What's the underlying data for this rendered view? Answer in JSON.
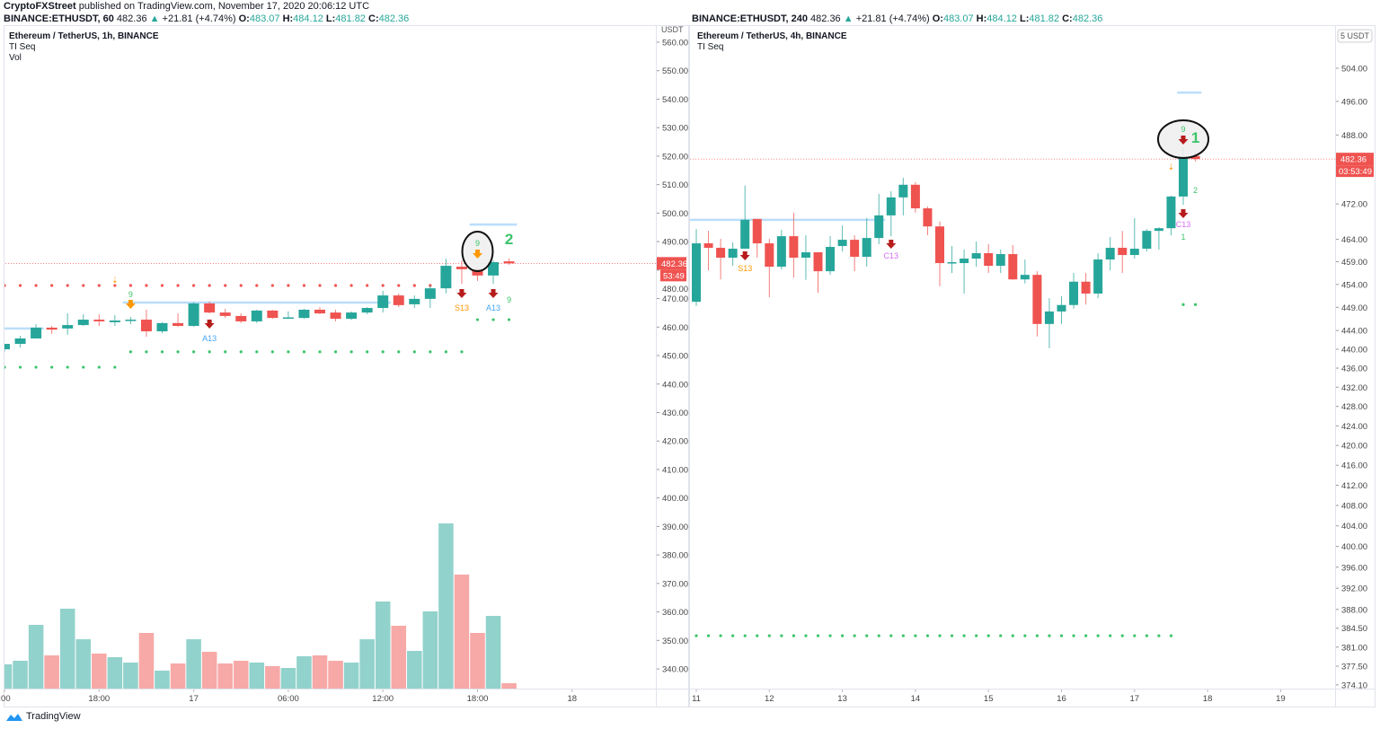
{
  "header": {
    "publisher": "CryptoFXStreet",
    "published_text": "published on TradingView.com, November 17, 2020 20:06:12 UTC"
  },
  "colors": {
    "up": "#26a69a",
    "down": "#ef5350",
    "up_volume": "#92d2cc",
    "down_volume": "#f7a9a7",
    "td_green": "#3cc46a",
    "td_red_dots": "#ef5350",
    "td_orange": "#ff9800",
    "td_blue": "#42a5f5",
    "td_magenta": "#d66cf5",
    "arrow_dark_red": "#b71c1c",
    "support_line": "#bbdefb",
    "price_badge": "#ef5350"
  },
  "panes": [
    {
      "symbol": "BINANCE:ETHUSDT, 60",
      "last": "482.36",
      "up_icon": "triangle-up",
      "change": "+21.81 (+4.74%)",
      "o_label": "O:",
      "o": "483.07",
      "h_label": "H:",
      "h": "484.12",
      "l_label": "L:",
      "l": "481.82",
      "c_label": "C:",
      "c": "482.36",
      "title": "Ethereum / TetherUS, 1h, BINANCE",
      "indicators": [
        "TI Seq",
        "Vol"
      ],
      "currency": "USDT",
      "price_badge": "482.36",
      "countdown": "53:49"
    },
    {
      "symbol": "BINANCE:ETHUSDT, 240",
      "last": "482.36",
      "up_icon": "triangle-up",
      "change": "+21.81 (+4.74%)",
      "o_label": "O:",
      "o": "483.07",
      "h_label": "H:",
      "h": "484.12",
      "l_label": "L:",
      "l": "481.82",
      "c_label": "C:",
      "c": "482.36",
      "title": "Ethereum / TetherUS, 4h, BINANCE",
      "indicators": [
        "TI Seq"
      ],
      "currency": "5 USDT",
      "price_badge": "482.36",
      "countdown": "03:53:49"
    }
  ],
  "footer": {
    "brand": "TradingView"
  },
  "chart_data": [
    {
      "type": "candlestick",
      "interval": "1h",
      "scale": "linear",
      "ylim": [
        340,
        560
      ],
      "y_ticks": [
        "560.00",
        "550.00",
        "540.00",
        "530.00",
        "520.00",
        "510.00",
        "500.00",
        "490.00",
        "480.00",
        "470.00",
        "460.00",
        "450.00",
        "440.00",
        "430.00",
        "420.00",
        "410.00",
        "400.00",
        "390.00",
        "380.00",
        "370.00",
        "360.00",
        "350.00",
        "340.00"
      ],
      "x_ticks": [
        ":00",
        "18:00",
        "17",
        "06:00",
        "12:00",
        "18:00",
        "18"
      ],
      "x_tick_index": [
        0,
        6,
        12,
        18,
        24,
        30,
        36
      ],
      "last_price": 482.36,
      "candles": [
        [
          452.2,
          454.1,
          451.3,
          454.1
        ],
        [
          454.1,
          456.9,
          452.8,
          456.0
        ],
        [
          456.0,
          461.0,
          456.0,
          459.8
        ],
        [
          459.8,
          460.4,
          457.6,
          459.1
        ],
        [
          459.5,
          464.8,
          457.3,
          460.7
        ],
        [
          460.7,
          464.5,
          460.4,
          462.6
        ],
        [
          462.6,
          464.5,
          460.4,
          462.0
        ],
        [
          461.7,
          464.2,
          460.4,
          462.3
        ],
        [
          462.3,
          463.6,
          461.0,
          462.6
        ],
        [
          462.6,
          466.1,
          456.6,
          458.5
        ],
        [
          458.5,
          461.7,
          457.9,
          461.4
        ],
        [
          461.4,
          464.8,
          460.1,
          460.4
        ],
        [
          460.4,
          468.7,
          460.1,
          468.3
        ],
        [
          468.3,
          469.0,
          464.8,
          465.1
        ],
        [
          465.1,
          466.4,
          463.2,
          463.9
        ],
        [
          463.9,
          464.8,
          461.4,
          462.0
        ],
        [
          462.0,
          466.1,
          461.4,
          465.8
        ],
        [
          465.8,
          466.0,
          462.9,
          463.2
        ],
        [
          463.2,
          465.5,
          462.9,
          463.4
        ],
        [
          463.2,
          466.4,
          462.9,
          466.1
        ],
        [
          466.1,
          467.0,
          464.5,
          464.8
        ],
        [
          465.1,
          466.1,
          462.0,
          462.9
        ],
        [
          462.9,
          465.5,
          462.5,
          465.1
        ],
        [
          465.1,
          467.0,
          464.5,
          466.7
        ],
        [
          466.7,
          472.7,
          465.1,
          471.1
        ],
        [
          471.1,
          471.8,
          467.0,
          467.7
        ],
        [
          468.0,
          471.1,
          466.7,
          469.9
        ],
        [
          469.9,
          474.6,
          466.7,
          473.6
        ],
        [
          473.6,
          484.0,
          471.8,
          481.5
        ],
        [
          481.2,
          483.4,
          475.2,
          480.3
        ],
        [
          480.3,
          481.2,
          476.2,
          478.1
        ],
        [
          478.1,
          483.4,
          475.2,
          482.8
        ],
        [
          483.07,
          484.12,
          481.82,
          482.36
        ]
      ],
      "volume": [
        27,
        31,
        71,
        37,
        89,
        55,
        39,
        35,
        29,
        62,
        20,
        28,
        55,
        41,
        28,
        31,
        29,
        25,
        23,
        36,
        37,
        31,
        29,
        55,
        97,
        70,
        42,
        86,
        184,
        127,
        62,
        81,
        6
      ],
      "dot_rows": [
        {
          "color": "red",
          "price": 474.6,
          "from": 0,
          "to": 27
        },
        {
          "color": "green",
          "price": 445.9,
          "from": 0,
          "to": 7
        },
        {
          "color": "green",
          "price": 451.3,
          "from": 8,
          "to": 29
        },
        {
          "color": "green",
          "price": 462.6,
          "from": 30,
          "to": 32
        }
      ],
      "levels": [
        {
          "price": 459.5,
          "from": 0,
          "to": 2
        },
        {
          "price": 468.6,
          "from": 8,
          "to": 24
        },
        {
          "price": 496.0,
          "from": 30,
          "to": 32
        }
      ],
      "markers": [
        {
          "index": 7,
          "text": "⇣",
          "color": "orange"
        },
        {
          "index": 8,
          "text": "9",
          "color": "green"
        },
        {
          "index": 8,
          "icon": "arrow-down",
          "color": "orange"
        },
        {
          "index": 13,
          "icon": "arrow-down",
          "color": "darkred"
        },
        {
          "index": 13,
          "text": "A13",
          "color": "blue"
        },
        {
          "index": 29,
          "icon": "arrow-down",
          "color": "darkred"
        },
        {
          "index": 29,
          "text": "S13",
          "color": "orange"
        },
        {
          "index": 31,
          "icon": "arrow-down",
          "color": "darkred"
        },
        {
          "index": 31,
          "text": "A13",
          "color": "blue"
        },
        {
          "index": 32,
          "text": "9",
          "color": "green"
        },
        {
          "index": 30,
          "text": "9",
          "color": "green"
        },
        {
          "index": 30,
          "icon": "arrow-down",
          "color": "orange"
        },
        {
          "index": 32,
          "text": "2",
          "color": "green",
          "large": true
        }
      ],
      "highlight_circle_index": 30
    },
    {
      "type": "candlestick",
      "interval": "4h",
      "scale": "log",
      "ylim": [
        374.1,
        504
      ],
      "y_ticks": [
        "504.00",
        "496.00",
        "488.00",
        "472.00",
        "464.00",
        "459.00",
        "454.00",
        "449.00",
        "444.00",
        "440.00",
        "436.00",
        "432.00",
        "428.00",
        "424.00",
        "420.00",
        "416.00",
        "412.00",
        "408.00",
        "404.00",
        "400.00",
        "396.00",
        "392.00",
        "388.00",
        "384.50",
        "381.00",
        "377.50",
        "374.10"
      ],
      "x_ticks": [
        "11",
        "12",
        "13",
        "14",
        "15",
        "16",
        "17",
        "18",
        "19"
      ],
      "x_tick_index": [
        0,
        6,
        12,
        18,
        24,
        30,
        36,
        42,
        48
      ],
      "last_price": 482.36,
      "candles": [
        [
          450.2,
          466.3,
          449.3,
          463.1
        ],
        [
          463.1,
          465.9,
          457.1,
          462.1
        ],
        [
          462.1,
          464.1,
          455.1,
          459.9
        ],
        [
          459.9,
          463.3,
          458.1,
          461.9
        ],
        [
          461.9,
          476.2,
          461.9,
          468.4
        ],
        [
          468.6,
          468.6,
          459.9,
          463.1
        ],
        [
          463.1,
          464.1,
          451.2,
          457.9
        ],
        [
          457.9,
          466.1,
          457.3,
          464.7
        ],
        [
          464.7,
          470.0,
          455.5,
          459.9
        ],
        [
          459.9,
          464.9,
          455.0,
          461.1
        ],
        [
          461.1,
          461.1,
          452.2,
          456.9
        ],
        [
          456.9,
          464.7,
          456.1,
          462.3
        ],
        [
          462.5,
          467.1,
          461.3,
          463.9
        ],
        [
          463.9,
          464.9,
          456.9,
          460.1
        ],
        [
          460.1,
          468.8,
          457.9,
          464.3
        ],
        [
          464.3,
          474.3,
          462.9,
          469.4
        ],
        [
          469.4,
          474.9,
          464.7,
          473.5
        ],
        [
          473.5,
          478.0,
          469.4,
          476.4
        ],
        [
          476.4,
          477.0,
          470.0,
          471.0
        ],
        [
          471.0,
          471.4,
          464.9,
          466.9
        ],
        [
          466.9,
          468.0,
          453.6,
          458.7
        ],
        [
          458.7,
          462.5,
          456.5,
          458.9
        ],
        [
          458.7,
          461.7,
          452.0,
          459.7
        ],
        [
          459.7,
          463.5,
          457.9,
          460.9
        ],
        [
          460.9,
          462.9,
          456.5,
          458.1
        ],
        [
          458.1,
          461.7,
          456.5,
          460.7
        ],
        [
          460.7,
          462.7,
          455.0,
          455.1
        ],
        [
          455.1,
          459.5,
          454.2,
          456.1
        ],
        [
          456.1,
          456.9,
          442.7,
          445.4
        ],
        [
          445.4,
          451.0,
          440.2,
          448.1
        ],
        [
          448.1,
          451.4,
          445.4,
          449.5
        ],
        [
          449.5,
          456.5,
          448.7,
          454.6
        ],
        [
          454.6,
          456.5,
          449.6,
          452.0
        ],
        [
          452.0,
          460.9,
          451.0,
          459.5
        ],
        [
          459.5,
          464.5,
          457.1,
          462.1
        ],
        [
          462.1,
          465.9,
          456.5,
          460.5
        ],
        [
          460.5,
          468.8,
          459.7,
          461.9
        ],
        [
          461.9,
          466.3,
          461.3,
          465.9
        ],
        [
          465.9,
          466.7,
          461.7,
          466.5
        ],
        [
          466.5,
          473.9,
          464.9,
          473.7
        ],
        [
          473.7,
          484.9,
          471.8,
          482.8
        ],
        [
          483.07,
          484.12,
          481.82,
          482.36
        ]
      ],
      "dot_rows": [
        {
          "color": "green",
          "price": 383.1,
          "from": 0,
          "to": 39
        },
        {
          "color": "green",
          "price": 449.6,
          "from": 40,
          "to": 41
        }
      ],
      "levels": [
        {
          "price": 468.4,
          "from": 0,
          "to": 15
        },
        {
          "price": 498.1,
          "from": 40,
          "to": 41
        }
      ],
      "markers": [
        {
          "index": 4,
          "icon": "arrow-down",
          "color": "darkred"
        },
        {
          "index": 4,
          "text": "S13",
          "color": "orange"
        },
        {
          "index": 16,
          "icon": "arrow-down",
          "color": "darkred"
        },
        {
          "index": 16,
          "text": "C13",
          "color": "magenta"
        },
        {
          "index": 39,
          "text": "⇣",
          "color": "orange"
        },
        {
          "index": 40,
          "text": "9",
          "color": "green"
        },
        {
          "index": 40,
          "icon": "arrow-down",
          "color": "darkred"
        },
        {
          "index": 41,
          "text": "1",
          "color": "green",
          "large": true
        },
        {
          "index": 41,
          "text": "2",
          "color": "green"
        },
        {
          "index": 40,
          "icon": "arrow-down",
          "color": "darkred"
        },
        {
          "index": 40,
          "text": "C13",
          "color": "magenta"
        },
        {
          "index": 40,
          "text": "1",
          "color": "green"
        }
      ],
      "highlight_circle_index": 40
    }
  ]
}
